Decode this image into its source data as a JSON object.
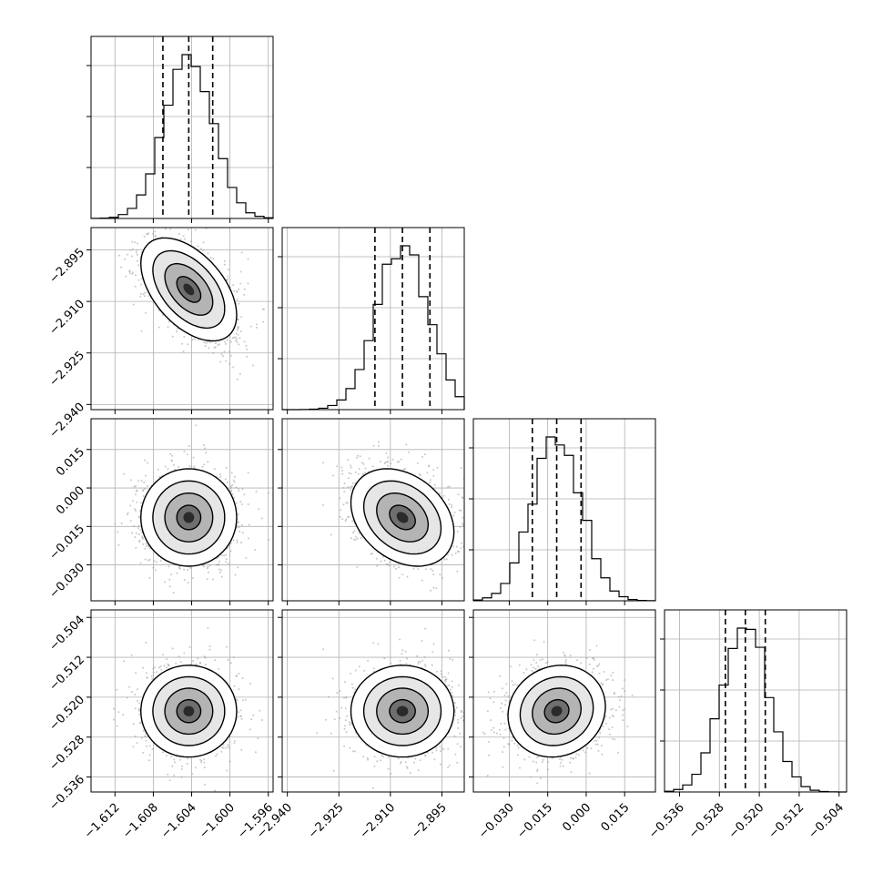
{
  "chart_data": {
    "type": "corner",
    "description_kind": "posterior corner plot of 4 parameters",
    "grid": true,
    "colors": {
      "line": "#000000",
      "scatter": "#9a9a9a",
      "grid": "#b0b0b0",
      "background": "#ffffff"
    },
    "params": [
      {
        "range": [
          -1.6145,
          -1.5955
        ],
        "ticks": [
          -1.612,
          -1.608,
          -1.604,
          -1.6,
          -1.596
        ],
        "tick_labels": [
          "−1.612",
          "−1.608",
          "−1.604",
          "−1.600",
          "−1.596"
        ],
        "mean": -1.6043,
        "sd": 0.0025,
        "quantiles": [
          -1.607,
          -1.6043,
          -1.6018
        ]
      },
      {
        "range": [
          -2.9415,
          -2.8885
        ],
        "ticks": [
          -2.94,
          -2.925,
          -2.91,
          -2.895
        ],
        "tick_labels": [
          "−2.940",
          "−2.925",
          "−2.910",
          "−2.895"
        ],
        "mean": -2.9065,
        "sd": 0.0075,
        "quantiles": [
          -2.9145,
          -2.9065,
          -2.8985
        ]
      },
      {
        "range": [
          -0.044,
          0.027
        ],
        "ticks": [
          -0.03,
          -0.015,
          0.0,
          0.015
        ],
        "tick_labels": [
          "−0.030",
          "−0.015",
          "0.000",
          "0.015"
        ],
        "mean": -0.0115,
        "sd": 0.0095,
        "quantiles": [
          -0.021,
          -0.0115,
          -0.002
        ]
      },
      {
        "range": [
          -0.539,
          -0.5025
        ],
        "ticks": [
          -0.536,
          -0.528,
          -0.52,
          -0.512,
          -0.504
        ],
        "tick_labels": [
          "−0.536",
          "−0.528",
          "−0.520",
          "−0.512",
          "−0.504"
        ],
        "mean": -0.5228,
        "sd": 0.0046,
        "quantiles": [
          -0.5268,
          -0.5228,
          -0.5188
        ]
      }
    ],
    "hist_bins": 20,
    "correlations": {
      "1-0": -0.5,
      "2-0": 0.0,
      "2-1": -0.3,
      "3-0": 0.0,
      "3-1": 0.0,
      "3-2": 0.1
    },
    "contour_levels_sigma": [
      0.5,
      1.0,
      1.5,
      2.0
    ]
  }
}
